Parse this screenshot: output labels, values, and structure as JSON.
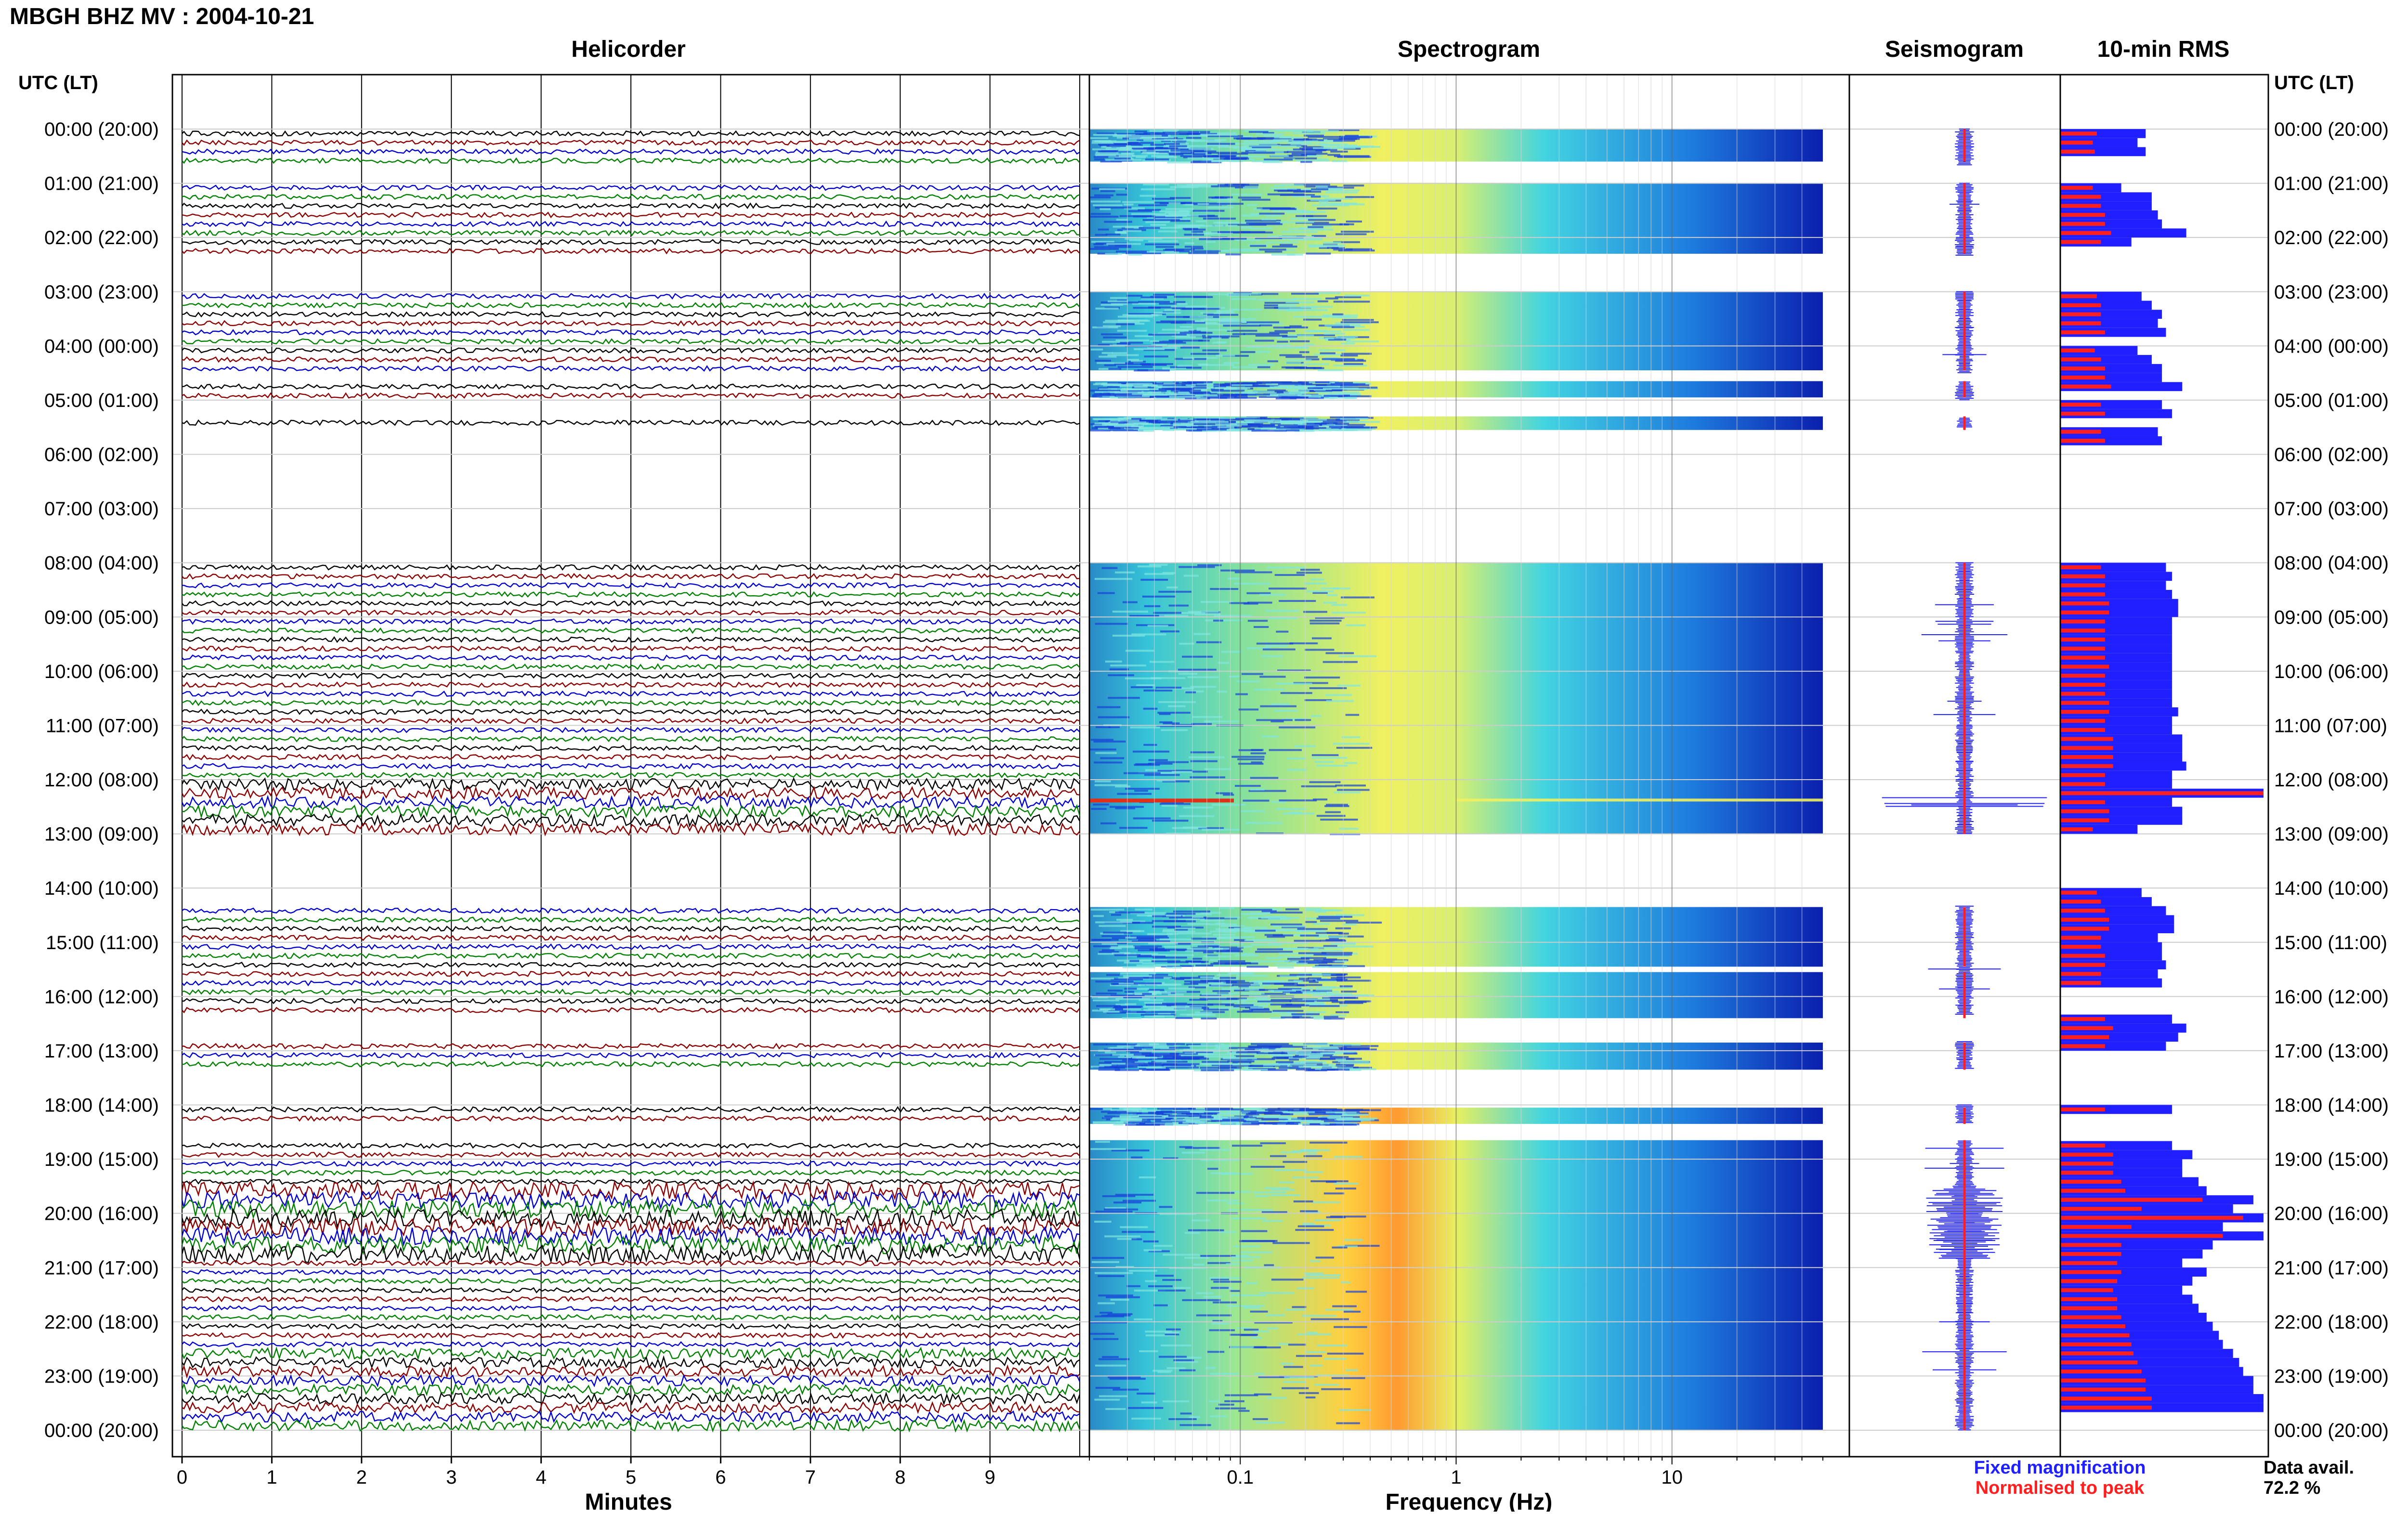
{
  "header": {
    "title": "MBGH BHZ MV : 2004-10-21",
    "utc_label_left": "UTC (LT)",
    "utc_label_right": "UTC (LT)"
  },
  "panels": {
    "helicorder": "Helicorder",
    "spectrogram": "Spectrogram",
    "seismogram": "Seismogram",
    "rms": "10-min RMS"
  },
  "axes": {
    "minutes_label": "Minutes",
    "frequency_label": "Frequency (Hz)",
    "minute_ticks": [
      "0",
      "1",
      "2",
      "3",
      "4",
      "5",
      "6",
      "7",
      "8",
      "9"
    ],
    "frequency_ticks": [
      "0.1",
      "1",
      "10"
    ]
  },
  "time_labels": [
    "00:00 (20:00)",
    "01:00 (21:00)",
    "02:00 (22:00)",
    "03:00 (23:00)",
    "04:00 (00:00)",
    "05:00 (01:00)",
    "06:00 (02:00)",
    "07:00 (03:00)",
    "08:00 (04:00)",
    "09:00 (05:00)",
    "10:00 (06:00)",
    "11:00 (07:00)",
    "12:00 (08:00)",
    "13:00 (09:00)",
    "14:00 (10:00)",
    "15:00 (11:00)",
    "16:00 (12:00)",
    "17:00 (13:00)",
    "18:00 (14:00)",
    "19:00 (15:00)",
    "20:00 (16:00)",
    "21:00 (17:00)",
    "22:00 (18:00)",
    "23:00 (19:00)",
    "00:00 (20:00)"
  ],
  "legend": {
    "fixed": "Fixed magnification",
    "normalised": "Normalised to peak",
    "fixed_color": "#1f1fff",
    "normalised_color": "#ff1f1f"
  },
  "data_availability": {
    "label": "Data avail.",
    "value": "72.2 %"
  },
  "chart_data": {
    "type": "heatmap",
    "station": "MBGH",
    "channel": "BHZ",
    "network": "MV",
    "date": "2004-10-21",
    "x_helicorder": {
      "label": "Minutes",
      "range": [
        0,
        10
      ]
    },
    "x_spectrogram": {
      "label": "Frequency (Hz)",
      "scale": "log",
      "range": [
        0.02,
        50
      ]
    },
    "y": {
      "label": "UTC (LT)",
      "range_hours": [
        0,
        24
      ]
    },
    "trace_colors": [
      "#000000",
      "#8b0000",
      "#0000cd",
      "#008000"
    ],
    "data_segments_hours": [
      [
        0,
        0.6
      ],
      [
        1,
        2.3
      ],
      [
        3,
        4.45
      ],
      [
        4.65,
        4.95
      ],
      [
        5.3,
        5.55
      ],
      [
        8,
        13
      ],
      [
        14.35,
        15.45
      ],
      [
        15.55,
        16.4
      ],
      [
        16.85,
        17.35
      ],
      [
        18.05,
        18.35
      ],
      [
        18.65,
        24
      ]
    ],
    "rms_10min": {
      "fixed_magnification": [
        0.42,
        0.38,
        0.42,
        null,
        null,
        null,
        0.3,
        0.45,
        0.45,
        0.48,
        0.5,
        0.62,
        0.35,
        null,
        null,
        null,
        null,
        null,
        0.4,
        0.45,
        0.5,
        0.48,
        0.52,
        null,
        0.38,
        0.45,
        0.5,
        0.5,
        0.6,
        null,
        0.5,
        0.55,
        null,
        0.48,
        0.5,
        null,
        null,
        null,
        null,
        null,
        null,
        null,
        null,
        null,
        null,
        null,
        null,
        null,
        0.52,
        0.55,
        0.52,
        0.55,
        0.58,
        0.58,
        0.55,
        0.55,
        0.55,
        0.55,
        0.55,
        0.55,
        0.55,
        0.55,
        0.55,
        0.55,
        0.58,
        0.55,
        0.55,
        0.6,
        0.6,
        0.6,
        0.62,
        0.55,
        0.55,
        1.0,
        0.55,
        0.6,
        0.6,
        0.38,
        null,
        null,
        null,
        null,
        null,
        null,
        0.4,
        0.45,
        0.52,
        0.56,
        0.56,
        0.48,
        0.5,
        0.5,
        0.52,
        0.48,
        0.5,
        null,
        null,
        null,
        0.55,
        0.62,
        0.58,
        0.52,
        null,
        null,
        null,
        null,
        null,
        null,
        0.55,
        null,
        null,
        null,
        0.55,
        0.65,
        0.6,
        0.6,
        0.68,
        0.72,
        0.95,
        0.85,
        1.0,
        0.8,
        1.0,
        0.75,
        0.7,
        0.6,
        0.72,
        0.65,
        0.6,
        0.65,
        0.68,
        0.72,
        0.75,
        0.78,
        0.8,
        0.85,
        0.88,
        0.9,
        0.95,
        0.95,
        1.0,
        1.0
      ],
      "normalised_to_peak": [
        0.18,
        0.16,
        0.17,
        null,
        null,
        null,
        0.16,
        0.2,
        0.2,
        0.22,
        0.22,
        0.25,
        0.2,
        null,
        null,
        null,
        null,
        null,
        0.18,
        0.2,
        0.2,
        0.2,
        0.22,
        null,
        0.17,
        0.2,
        0.22,
        0.22,
        0.25,
        null,
        0.2,
        0.22,
        null,
        0.2,
        0.22,
        null,
        null,
        null,
        null,
        null,
        null,
        null,
        null,
        null,
        null,
        null,
        null,
        null,
        0.2,
        0.22,
        0.22,
        0.22,
        0.24,
        0.24,
        0.22,
        0.22,
        0.22,
        0.22,
        0.22,
        0.24,
        0.22,
        0.22,
        0.22,
        0.24,
        0.24,
        0.22,
        0.22,
        0.26,
        0.26,
        0.26,
        0.26,
        0.22,
        0.22,
        1.0,
        0.22,
        0.24,
        0.24,
        0.16,
        null,
        null,
        null,
        null,
        null,
        null,
        0.18,
        0.2,
        0.22,
        0.24,
        0.24,
        0.2,
        0.2,
        0.22,
        0.22,
        0.2,
        0.2,
        null,
        null,
        null,
        0.22,
        0.26,
        0.24,
        0.22,
        null,
        null,
        null,
        null,
        null,
        null,
        0.22,
        null,
        null,
        null,
        0.22,
        0.26,
        0.26,
        0.26,
        0.3,
        0.32,
        0.7,
        0.4,
        0.9,
        0.35,
        0.8,
        0.3,
        0.3,
        0.28,
        0.3,
        0.28,
        0.26,
        0.28,
        0.28,
        0.3,
        0.32,
        0.34,
        0.35,
        0.36,
        0.38,
        0.4,
        0.42,
        0.42,
        0.45,
        0.45
      ]
    }
  }
}
